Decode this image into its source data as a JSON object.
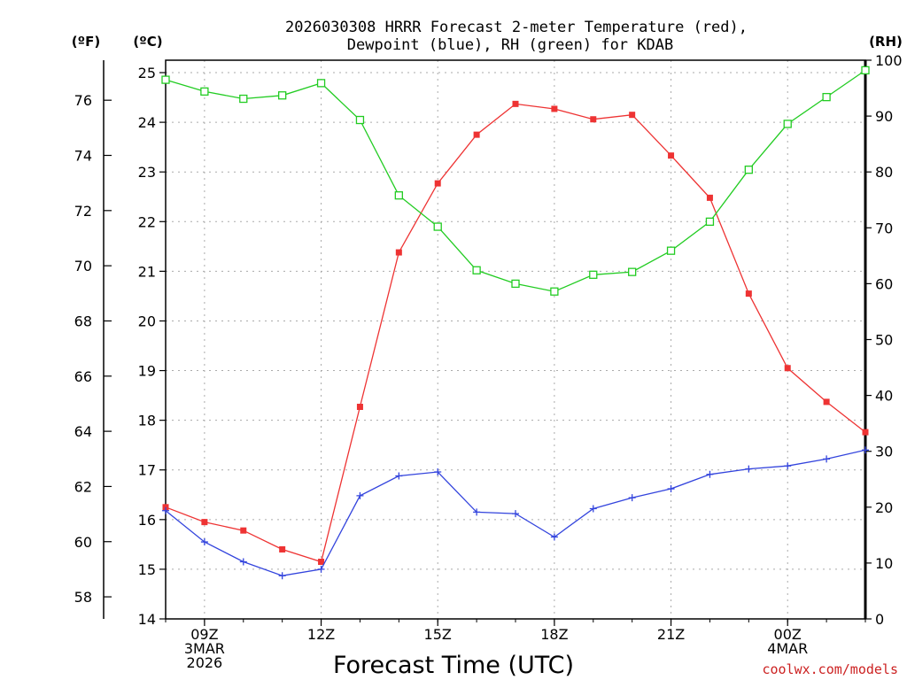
{
  "chart_data": {
    "type": "line",
    "title": [
      "2026030308 HRRR Forecast 2-meter Temperature (red),",
      "Dewpoint (blue), RH (green) for KDAB"
    ],
    "xlabel": "Forecast Time (UTC)",
    "unit_labels": {
      "fahrenheit": "(ºF)",
      "celsius": "(ºC)",
      "rh": "(RH)"
    },
    "watermark": "coolwx.com/models",
    "x_hours": [
      8,
      9,
      10,
      11,
      12,
      13,
      14,
      15,
      16,
      17,
      18,
      19,
      20,
      21,
      22,
      23,
      24,
      25,
      26
    ],
    "x_range": [
      8,
      26
    ],
    "x_ticks": [
      {
        "hour": 9,
        "lines": [
          "09Z",
          "3MAR",
          "2026"
        ]
      },
      {
        "hour": 12,
        "lines": [
          "12Z"
        ]
      },
      {
        "hour": 15,
        "lines": [
          "15Z"
        ]
      },
      {
        "hour": 18,
        "lines": [
          "18Z"
        ]
      },
      {
        "hour": 21,
        "lines": [
          "21Z"
        ]
      },
      {
        "hour": 24,
        "lines": [
          "00Z",
          "4MAR"
        ]
      }
    ],
    "celsius_axis": {
      "range": [
        14,
        25.25
      ],
      "ticks": [
        14,
        15,
        16,
        17,
        18,
        19,
        20,
        21,
        22,
        23,
        24,
        25
      ]
    },
    "fahrenheit_ticks": [
      58,
      60,
      62,
      64,
      66,
      68,
      70,
      72,
      74,
      76
    ],
    "rh_axis": {
      "range": [
        0,
        100
      ],
      "ticks": [
        0,
        10,
        20,
        30,
        40,
        50,
        60,
        70,
        80,
        90,
        100
      ]
    },
    "series": [
      {
        "name": "Temperature",
        "unit": "°C",
        "axis": "celsius",
        "color": "#ee3333",
        "marker": "square-filled",
        "values": [
          16.25,
          15.95,
          15.78,
          15.4,
          15.15,
          18.27,
          21.38,
          22.77,
          23.75,
          24.37,
          24.27,
          24.06,
          24.15,
          23.33,
          22.48,
          20.55,
          19.05,
          18.37,
          17.76
        ]
      },
      {
        "name": "Dewpoint",
        "unit": "°C",
        "axis": "celsius",
        "color": "#3344dd",
        "marker": "plus",
        "values": [
          16.18,
          15.55,
          15.15,
          14.87,
          15.0,
          16.48,
          16.88,
          16.96,
          16.15,
          16.12,
          15.65,
          16.22,
          16.44,
          16.62,
          16.91,
          17.02,
          17.08,
          17.22,
          17.4
        ]
      },
      {
        "name": "RH",
        "unit": "%",
        "axis": "rh",
        "color": "#22cc22",
        "marker": "square-open",
        "values": [
          96.5,
          94.4,
          93.1,
          93.7,
          95.9,
          89.3,
          75.8,
          70.2,
          62.4,
          60.0,
          58.6,
          61.6,
          62.1,
          65.9,
          71.1,
          80.4,
          88.6,
          93.4,
          98.2
        ]
      }
    ]
  }
}
